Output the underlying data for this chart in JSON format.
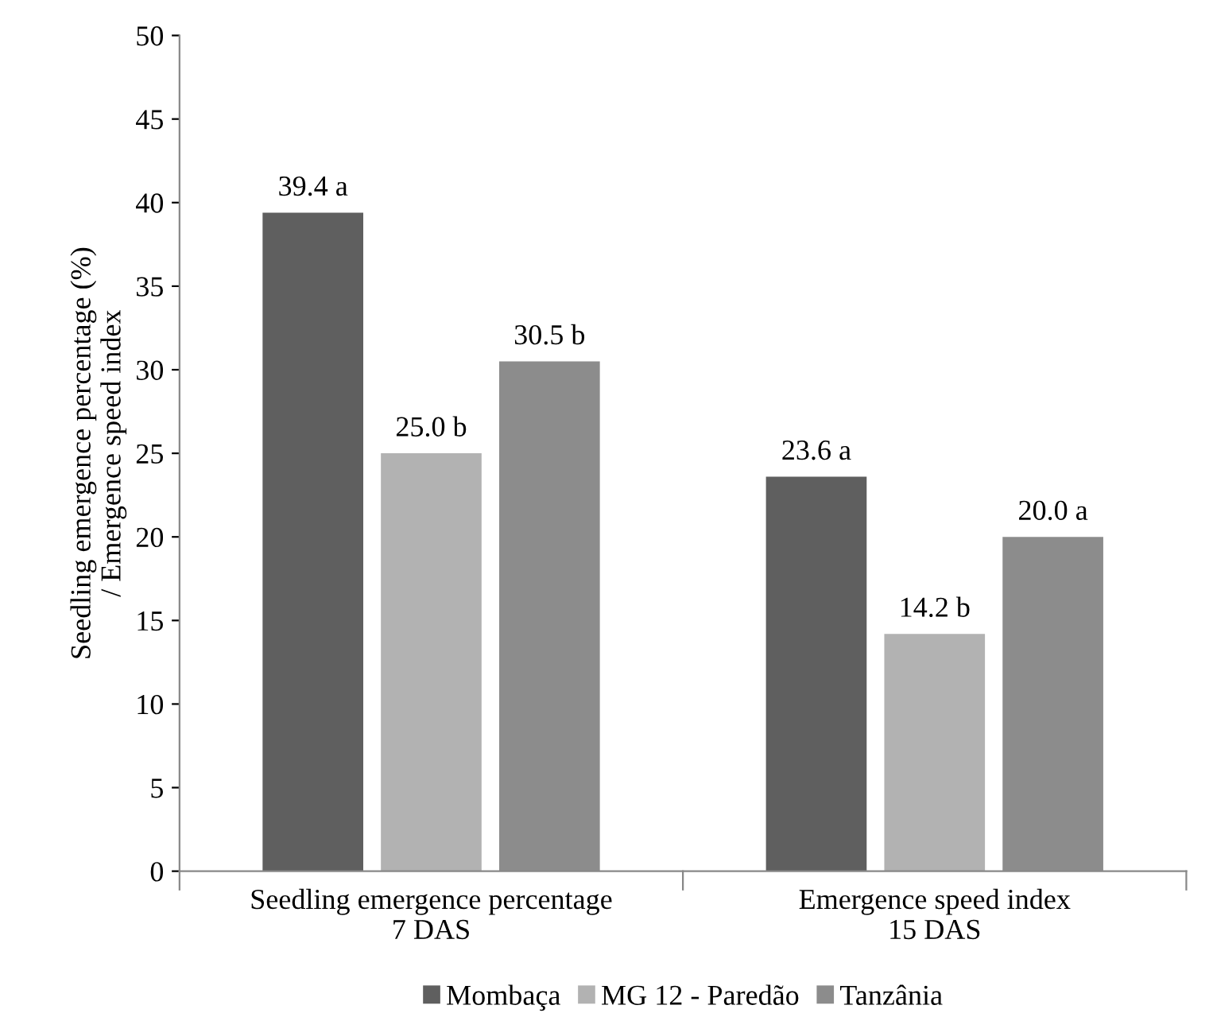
{
  "chart_data": {
    "type": "bar",
    "categories": [
      "Seedling emergence percentage\n7 DAS",
      "Emergence speed index\n15 DAS"
    ],
    "ylabel": "Seedling emergence percentage (%)\n/ Emergence speed index",
    "series": [
      {
        "name": "Mombaça",
        "color": "#5f5f5f",
        "values": [
          39.4,
          23.6
        ],
        "value_labels": [
          "39.4 a",
          "23.6 a"
        ]
      },
      {
        "name": "MG 12 - Paredão",
        "color": "#b2b2b2",
        "values": [
          25.0,
          14.2
        ],
        "value_labels": [
          "25.0 b",
          "14.2 b"
        ]
      },
      {
        "name": "Tanzânia",
        "color": "#8c8c8c",
        "values": [
          30.5,
          20.0
        ],
        "value_labels": [
          "30.5 b",
          "20.0 a"
        ]
      }
    ],
    "ylim": [
      0,
      50
    ],
    "yticks": [
      0,
      5,
      10,
      15,
      20,
      25,
      30,
      35,
      40,
      45,
      50
    ],
    "grid": false,
    "legend": "bottom"
  }
}
